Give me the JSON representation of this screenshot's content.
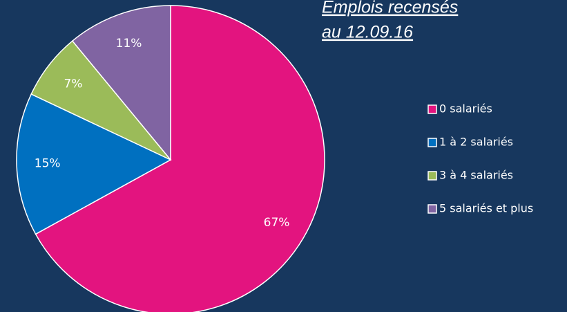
{
  "chart_data": {
    "type": "pie",
    "title": [
      "Emplois recensés",
      "au 12.09.16"
    ],
    "categories": [
      "0 salariés",
      "1 à 2 salariés",
      "3 à 4 salariés",
      "5 salariés et plus"
    ],
    "values": [
      67,
      15,
      7,
      11
    ],
    "value_labels": [
      "67%",
      "15%",
      "7%",
      "11%"
    ],
    "colors": [
      "#e3147f",
      "#0070c0",
      "#9bbb59",
      "#8064a2"
    ],
    "legend": "right"
  }
}
